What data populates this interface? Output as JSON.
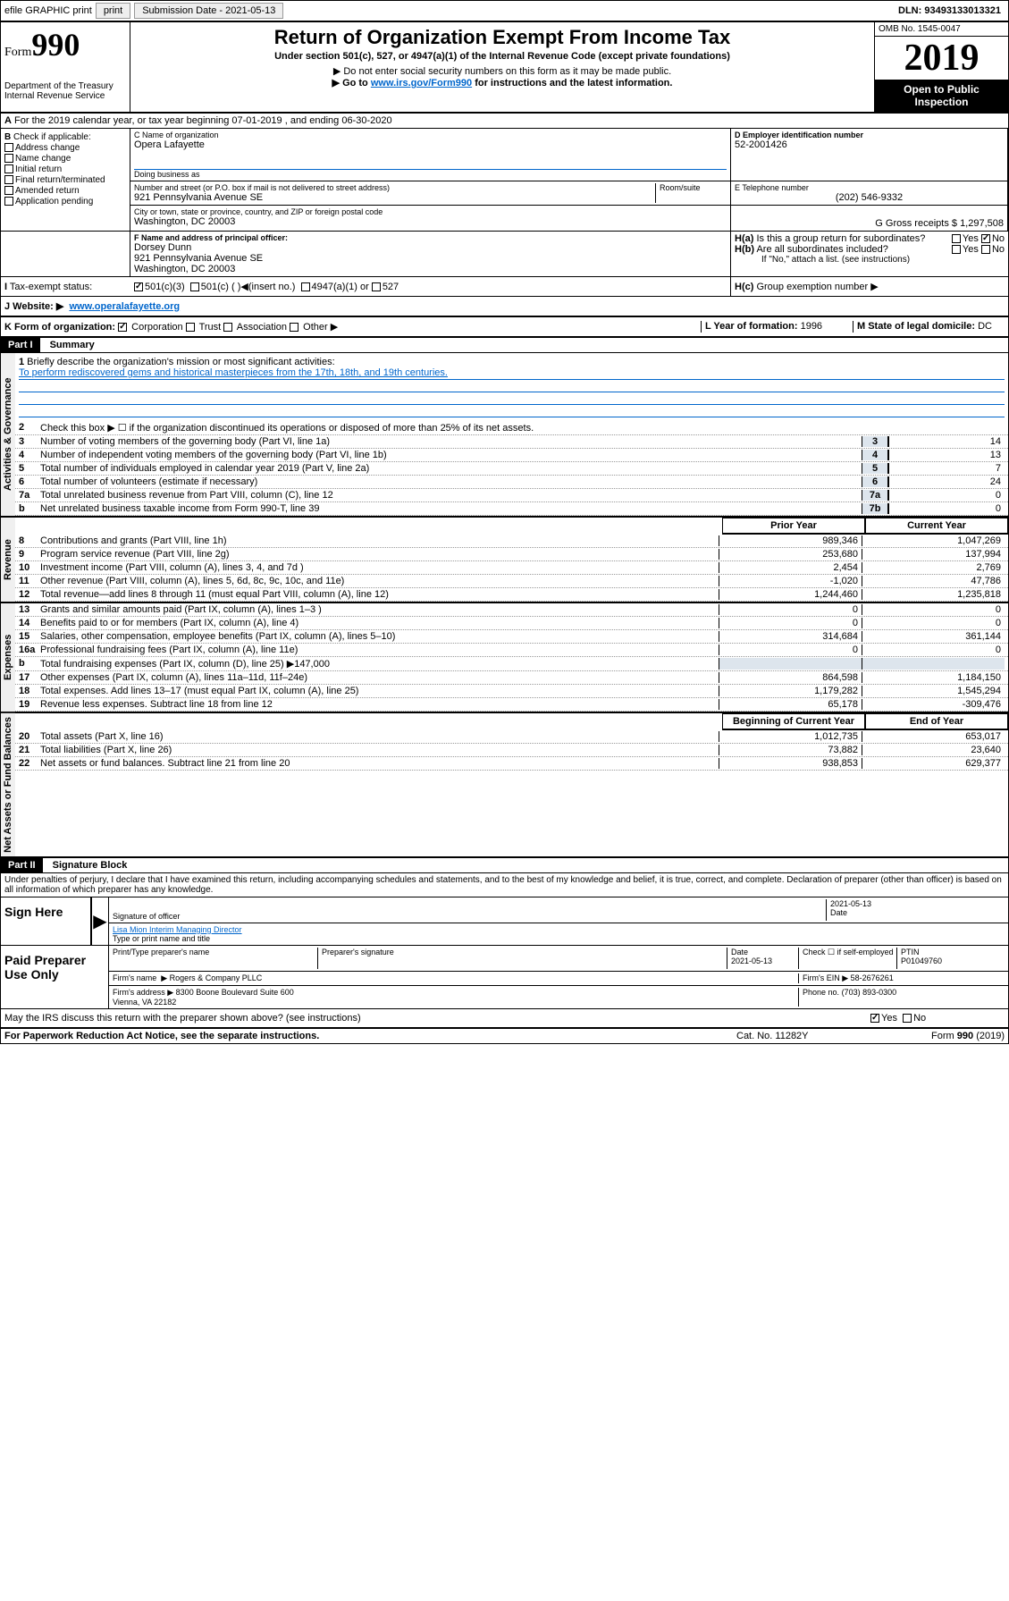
{
  "top": {
    "efile_label": "efile GRAPHIC print",
    "submission_label": "Submission Date - 2021-05-13",
    "dln_label": "DLN: 93493133013321"
  },
  "header": {
    "form_prefix": "Form",
    "form_number": "990",
    "dept": "Department of the Treasury\nInternal Revenue Service",
    "title": "Return of Organization Exempt From Income Tax",
    "subtitle": "Under section 501(c), 527, or 4947(a)(1) of the Internal Revenue Code (except private foundations)",
    "warn1": "Do not enter social security numbers on this form as it may be made public.",
    "warn2_prefix": "Go to ",
    "warn2_link": "www.irs.gov/Form990",
    "warn2_suffix": " for instructions and the latest information.",
    "omb": "OMB No. 1545-0047",
    "year": "2019",
    "open_public": "Open to Public Inspection"
  },
  "section_a": "For the 2019 calendar year, or tax year beginning 07-01-2019    , and ending 06-30-2020",
  "section_b": {
    "label": "Check if applicable:",
    "opts": [
      "Address change",
      "Name change",
      "Initial return",
      "Final return/terminated",
      "Amended return",
      "Application pending"
    ]
  },
  "section_c": {
    "name_label": "C Name of organization",
    "name": "Opera Lafayette",
    "dba_label": "Doing business as",
    "dba": "",
    "addr_label": "Number and street (or P.O. box if mail is not delivered to street address)",
    "addr": "921 Pennsylvania Avenue SE",
    "room_label": "Room/suite",
    "city_label": "City or town, state or province, country, and ZIP or foreign postal code",
    "city": "Washington, DC  20003"
  },
  "section_d": {
    "label": "D Employer identification number",
    "value": "52-2001426"
  },
  "section_e": {
    "label": "E Telephone number",
    "value": "(202) 546-9332"
  },
  "section_g": {
    "label": "G Gross receipts $",
    "value": "1,297,508"
  },
  "section_f": {
    "label": "F  Name and address of principal officer:",
    "name": "Dorsey Dunn",
    "addr": "921 Pennsylvania Avenue SE\nWashington, DC  20003"
  },
  "section_h": {
    "a_label": "Is this a group return for subordinates?",
    "b_label": "Are all subordinates included?",
    "b_note": "If \"No,\" attach a list. (see instructions)",
    "c_label": "Group exemption number",
    "yes": "Yes",
    "no": "No"
  },
  "tax_status": {
    "label": "Tax-exempt status:",
    "opt1": "501(c)(3)",
    "opt2": "501(c) (   )",
    "opt2b": "(insert no.)",
    "opt3": "4947(a)(1) or",
    "opt4": "527"
  },
  "website": {
    "label": "Website:",
    "value": "www.operalafayette.org"
  },
  "section_k": {
    "label": "K Form of organization:",
    "opts": [
      "Corporation",
      "Trust",
      "Association",
      "Other"
    ]
  },
  "section_l": {
    "label": "L Year of formation:",
    "value": "1996"
  },
  "section_m": {
    "label": "M State of legal domicile:",
    "value": "DC"
  },
  "part1": {
    "header": "Part I",
    "title": "Summary",
    "groups": [
      {
        "label": "Activities & Governance",
        "lines": [
          {
            "n": "1",
            "text": "Briefly describe the organization's mission or most significant activities:",
            "mission": "To perform rediscovered gems and historical masterpieces from the 17th, 18th, and 19th centuries."
          },
          {
            "n": "2",
            "text": "Check this box ▶ ☐  if the organization discontinued its operations or disposed of more than 25% of its net assets."
          },
          {
            "n": "3",
            "text": "Number of voting members of the governing body (Part VI, line 1a)",
            "box": "3",
            "val": "14"
          },
          {
            "n": "4",
            "text": "Number of independent voting members of the governing body (Part VI, line 1b)",
            "box": "4",
            "val": "13"
          },
          {
            "n": "5",
            "text": "Total number of individuals employed in calendar year 2019 (Part V, line 2a)",
            "box": "5",
            "val": "7"
          },
          {
            "n": "6",
            "text": "Total number of volunteers (estimate if necessary)",
            "box": "6",
            "val": "24"
          },
          {
            "n": "7a",
            "text": "Total unrelated business revenue from Part VIII, column (C), line 12",
            "box": "7a",
            "val": "0"
          },
          {
            "n": "b",
            "text": "Net unrelated business taxable income from Form 990-T, line 39",
            "box": "7b",
            "val": "0"
          }
        ]
      },
      {
        "label": "Revenue",
        "header_cols": [
          "Prior Year",
          "Current Year"
        ],
        "lines": [
          {
            "n": "8",
            "text": "Contributions and grants (Part VIII, line 1h)",
            "prior": "989,346",
            "curr": "1,047,269"
          },
          {
            "n": "9",
            "text": "Program service revenue (Part VIII, line 2g)",
            "prior": "253,680",
            "curr": "137,994"
          },
          {
            "n": "10",
            "text": "Investment income (Part VIII, column (A), lines 3, 4, and 7d )",
            "prior": "2,454",
            "curr": "2,769"
          },
          {
            "n": "11",
            "text": "Other revenue (Part VIII, column (A), lines 5, 6d, 8c, 9c, 10c, and 11e)",
            "prior": "-1,020",
            "curr": "47,786"
          },
          {
            "n": "12",
            "text": "Total revenue—add lines 8 through 11 (must equal Part VIII, column (A), line 12)",
            "prior": "1,244,460",
            "curr": "1,235,818"
          }
        ]
      },
      {
        "label": "Expenses",
        "lines": [
          {
            "n": "13",
            "text": "Grants and similar amounts paid (Part IX, column (A), lines 1–3 )",
            "prior": "0",
            "curr": "0"
          },
          {
            "n": "14",
            "text": "Benefits paid to or for members (Part IX, column (A), line 4)",
            "prior": "0",
            "curr": "0"
          },
          {
            "n": "15",
            "text": "Salaries, other compensation, employee benefits (Part IX, column (A), lines 5–10)",
            "prior": "314,684",
            "curr": "361,144"
          },
          {
            "n": "16a",
            "text": "Professional fundraising fees (Part IX, column (A), line 11e)",
            "prior": "0",
            "curr": "0"
          },
          {
            "n": "b",
            "text": "Total fundraising expenses (Part IX, column (D), line 25) ▶147,000",
            "gray": true
          },
          {
            "n": "17",
            "text": "Other expenses (Part IX, column (A), lines 11a–11d, 11f–24e)",
            "prior": "864,598",
            "curr": "1,184,150"
          },
          {
            "n": "18",
            "text": "Total expenses. Add lines 13–17 (must equal Part IX, column (A), line 25)",
            "prior": "1,179,282",
            "curr": "1,545,294"
          },
          {
            "n": "19",
            "text": "Revenue less expenses. Subtract line 18 from line 12",
            "prior": "65,178",
            "curr": "-309,476"
          }
        ]
      },
      {
        "label": "Net Assets or Fund Balances",
        "header_cols": [
          "Beginning of Current Year",
          "End of Year"
        ],
        "lines": [
          {
            "n": "20",
            "text": "Total assets (Part X, line 16)",
            "prior": "1,012,735",
            "curr": "653,017"
          },
          {
            "n": "21",
            "text": "Total liabilities (Part X, line 26)",
            "prior": "73,882",
            "curr": "23,640"
          },
          {
            "n": "22",
            "text": "Net assets or fund balances. Subtract line 21 from line 20",
            "prior": "938,853",
            "curr": "629,377"
          }
        ]
      }
    ]
  },
  "part2": {
    "header": "Part II",
    "title": "Signature Block",
    "perjury": "Under penalties of perjury, I declare that I have examined this return, including accompanying schedules and statements, and to the best of my knowledge and belief, it is true, correct, and complete. Declaration of preparer (other than officer) is based on all information of which preparer has any knowledge."
  },
  "sign_here": {
    "label": "Sign Here",
    "sig_label": "Signature of officer",
    "date": "2021-05-13",
    "date_label": "Date",
    "name": "Lisa Mion Interim Managing Director",
    "name_label": "Type or print name and title"
  },
  "preparer": {
    "label": "Paid Preparer Use Only",
    "print_label": "Print/Type preparer's name",
    "sig_label": "Preparer's signature",
    "date_label": "Date",
    "date": "2021-05-13",
    "check_label": "Check ☐ if self-employed",
    "ptin_label": "PTIN",
    "ptin": "P01049760",
    "firm_name_label": "Firm's name",
    "firm_name": "Rogers & Company PLLC",
    "firm_ein_label": "Firm's EIN",
    "firm_ein": "58-2676261",
    "firm_addr_label": "Firm's address",
    "firm_addr": "8300 Boone Boulevard Suite 600\nVienna, VA  22182",
    "phone_label": "Phone no.",
    "phone": "(703) 893-0300"
  },
  "discuss": {
    "text": "May the IRS discuss this return with the preparer shown above? (see instructions)",
    "yes": "Yes",
    "no": "No"
  },
  "footer": {
    "left": "For Paperwork Reduction Act Notice, see the separate instructions.",
    "mid": "Cat. No. 11282Y",
    "right": "Form 990 (2019)"
  }
}
